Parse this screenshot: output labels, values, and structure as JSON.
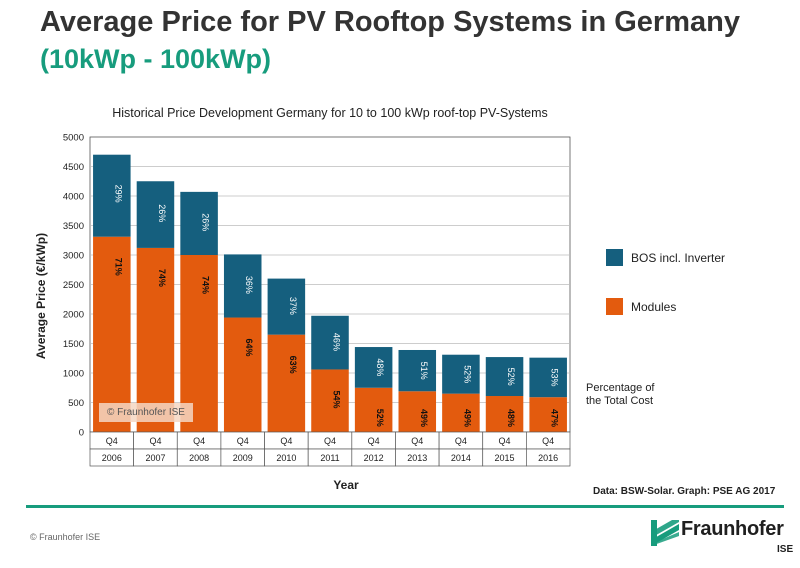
{
  "header": {
    "title": "Average Price for PV Rooftop Systems in Germany",
    "subtitle": "(10kWp - 100kWp)"
  },
  "colors": {
    "modules": "#e35b0e",
    "bos": "#155f7e",
    "accent": "#179c7d",
    "background": "#ffffff"
  },
  "chart_data": {
    "type": "bar",
    "stacked": true,
    "title": "Historical Price Development Germany for 10 to 100 kWp roof-top PV-Systems",
    "xlabel": "Year",
    "ylabel": "Average Price (€/kWp)",
    "ylim": [
      0,
      5000
    ],
    "yticks": [
      0,
      500,
      1000,
      1500,
      2000,
      2500,
      3000,
      3500,
      4000,
      4500,
      5000
    ],
    "grid": true,
    "legend_position": "right",
    "categories": [
      "Q4",
      "Q4",
      "Q4",
      "Q4",
      "Q4",
      "Q4",
      "Q4",
      "Q4",
      "Q4",
      "Q4",
      "Q4"
    ],
    "years": [
      "2006",
      "2007",
      "2008",
      "2009",
      "2010",
      "2011",
      "2012",
      "2013",
      "2014",
      "2015",
      "2016"
    ],
    "series": [
      {
        "name": "Modules",
        "values": [
          3310,
          3120,
          3000,
          1940,
          1650,
          1060,
          750,
          690,
          650,
          610,
          590
        ],
        "labels": [
          "71%",
          "74%",
          "74%",
          "64%",
          "63%",
          "54%",
          "52%",
          "49%",
          "49%",
          "48%",
          "47%"
        ]
      },
      {
        "name": "BOS incl. Inverter",
        "values": [
          1390,
          1130,
          1070,
          1070,
          950,
          910,
          690,
          700,
          660,
          660,
          670
        ],
        "labels": [
          "29%",
          "26%",
          "26%",
          "36%",
          "37%",
          "46%",
          "48%",
          "51%",
          "52%",
          "52%",
          "53%"
        ]
      }
    ],
    "annotation": "Percentage of the Total Cost"
  },
  "legend": {
    "bos_label": "BOS incl. Inverter",
    "modules_label": "Modules"
  },
  "note": {
    "line1": "Percentage of",
    "line2": "the Total Cost"
  },
  "source": "Data: BSW-Solar. Graph: PSE AG 2017",
  "watermark": "© Fraunhofer ISE",
  "footer": {
    "copyright": "© Fraunhofer ISE",
    "logo_name": "Fraunhofer",
    "logo_sub": "ISE"
  }
}
